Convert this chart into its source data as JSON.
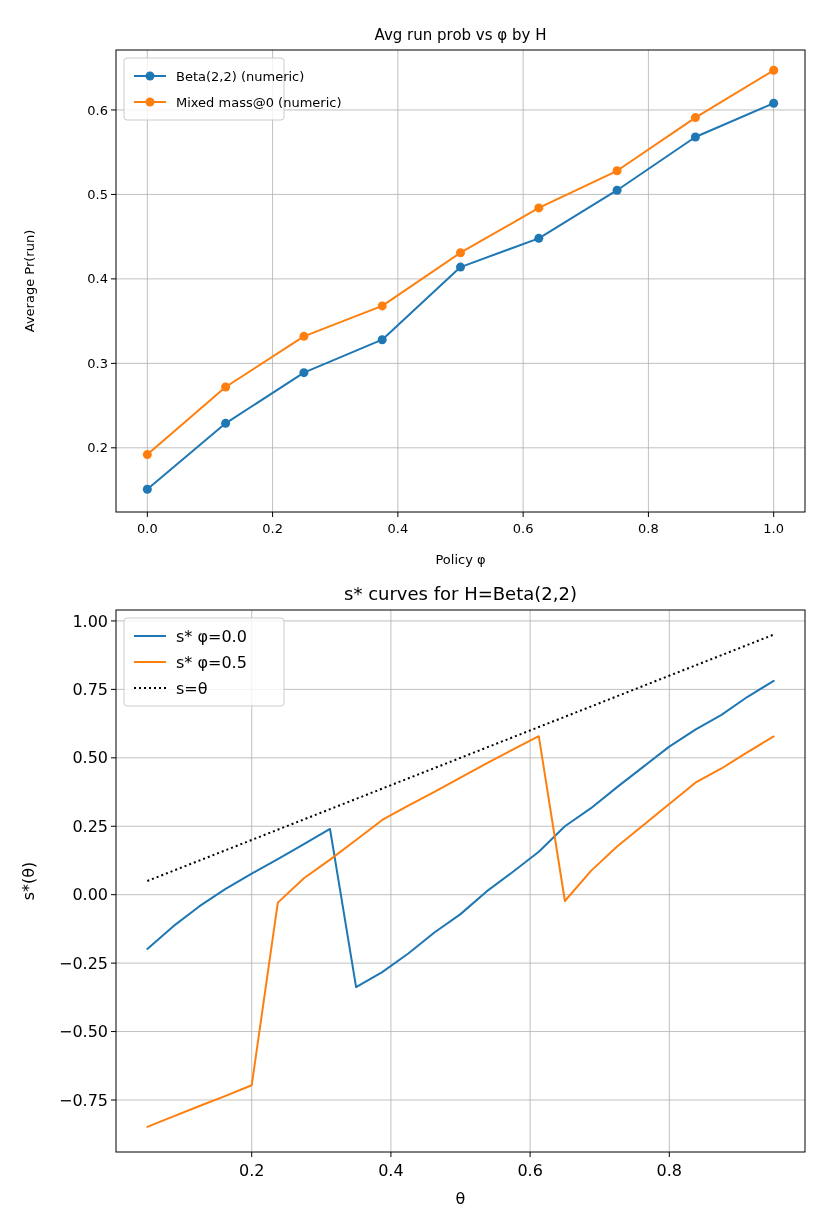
{
  "chart_data": [
    {
      "type": "line",
      "title": "Avg run prob vs φ by H",
      "xlabel": "Policy φ",
      "ylabel": "Average Pr(run)",
      "x": [
        0,
        0.125,
        0.25,
        0.375,
        0.5,
        0.625,
        0.75,
        0.875,
        1.0
      ],
      "series": [
        {
          "name": "Beta(2,2) (numeric)",
          "color": "#1f77b4",
          "values": [
            0.151,
            0.229,
            0.289,
            0.328,
            0.414,
            0.448,
            0.505,
            0.568,
            0.608
          ]
        },
        {
          "name": "Mixed mass@0 (numeric)",
          "color": "#ff7f0e",
          "values": [
            0.192,
            0.272,
            0.332,
            0.368,
            0.431,
            0.484,
            0.528,
            0.591,
            0.647
          ]
        }
      ],
      "xlim": [
        -0.05,
        1.05
      ],
      "xticks": [
        {
          "value": 0,
          "label": "0.0"
        },
        0.2,
        0.4,
        0.6,
        0.8,
        {
          "value": 1,
          "label": "1.0"
        }
      ],
      "ylim": [
        0.124,
        0.671
      ],
      "yticks": [
        0.2,
        0.3,
        0.4,
        0.5,
        0.6
      ],
      "grid": true,
      "legend": "top left",
      "marker": "circle"
    },
    {
      "type": "line",
      "title": "s* curves for H=Beta(2,2)",
      "xlabel": "θ",
      "ylabel": "s*(θ)",
      "series": [
        {
          "name": "s* φ=0.0",
          "color": "#1f77b4",
          "x": [
            0.05,
            0.0875,
            0.125,
            0.1625,
            0.2,
            0.2375,
            0.275,
            0.3125,
            0.35,
            0.3875,
            0.425,
            0.4625,
            0.5,
            0.5375,
            0.575,
            0.6125,
            0.65,
            0.6875,
            0.725,
            0.7625,
            0.8,
            0.8375,
            0.875,
            0.9125,
            0.95
          ],
          "values": [
            -0.198,
            -0.115,
            -0.042,
            0.021,
            0.077,
            0.13,
            0.185,
            0.24,
            -0.338,
            -0.283,
            -0.215,
            -0.138,
            -0.071,
            0.012,
            0.083,
            0.157,
            0.25,
            0.316,
            0.393,
            0.467,
            0.541,
            0.603,
            0.657,
            0.723,
            0.781
          ]
        },
        {
          "name": "s* φ=0.5",
          "color": "#ff7f0e",
          "x": [
            0.05,
            0.0875,
            0.125,
            0.1625,
            0.2,
            0.2375,
            0.275,
            0.3125,
            0.35,
            0.3875,
            0.425,
            0.4625,
            0.5,
            0.5375,
            0.575,
            0.6125,
            0.65,
            0.6875,
            0.725,
            0.7625,
            0.8,
            0.8375,
            0.875,
            0.9125,
            0.95
          ],
          "values": [
            -0.848,
            -0.81,
            -0.772,
            -0.735,
            -0.696,
            -0.029,
            0.06,
            0.128,
            0.2,
            0.273,
            0.325,
            0.376,
            0.428,
            0.48,
            0.53,
            0.579,
            -0.023,
            0.087,
            0.176,
            0.254,
            0.331,
            0.409,
            0.461,
            0.521,
            0.578
          ]
        },
        {
          "name": "s=θ",
          "color": "#000000",
          "line_style": "dotted",
          "x": [
            0.05,
            0.95
          ],
          "values": [
            0.05,
            0.95
          ]
        }
      ],
      "xlim": [
        0.005,
        0.995
      ],
      "xticks": [
        0.2,
        0.4,
        0.6,
        0.8
      ],
      "ylim": [
        -0.94,
        1.04
      ],
      "yticks": [
        {
          "value": -0.75,
          "label": "−0.75"
        },
        {
          "value": -0.5,
          "label": "−0.50"
        },
        {
          "value": -0.25,
          "label": "−0.25"
        },
        {
          "value": 0,
          "label": "0.00"
        },
        {
          "value": 0.25,
          "label": "0.25"
        },
        {
          "value": 0.5,
          "label": "0.50"
        },
        {
          "value": 0.75,
          "label": "0.75"
        },
        {
          "value": 1,
          "label": "1.00"
        }
      ],
      "grid": true,
      "legend": "top left",
      "marker": "none",
      "line_style": "solid"
    }
  ]
}
